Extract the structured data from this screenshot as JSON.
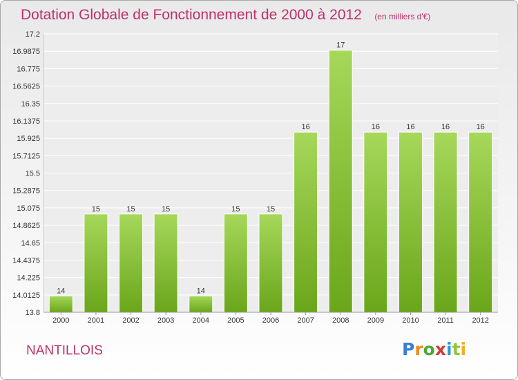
{
  "title": "Dotation Globale de Fonctionnement de 2000 à 2012",
  "unit_note": "(en milliers d'€)",
  "commune": "NANTILLOIS",
  "brand": {
    "text": "Proxiti",
    "letter_colors": [
      "#3a7fd5",
      "#f08a1c",
      "#4aa83a",
      "#d43a3a",
      "#2d9ad8",
      "#8fc63a",
      "#f0b020"
    ]
  },
  "colors": {
    "title": "#c0306a",
    "bar_light": "#a6d85a",
    "bar_dark": "#6aa61a",
    "axis_text": "#333333"
  },
  "chart_data": {
    "type": "bar",
    "title": "Dotation Globale de Fonctionnement de 2000 à 2012",
    "subtitle": "(en milliers d'€)",
    "xlabel": "",
    "ylabel": "",
    "categories": [
      "2000",
      "2001",
      "2002",
      "2003",
      "2004",
      "2005",
      "2006",
      "2007",
      "2008",
      "2009",
      "2010",
      "2011",
      "2012"
    ],
    "values": [
      14,
      15,
      15,
      15,
      14,
      15,
      15,
      16,
      17,
      16,
      16,
      16,
      16
    ],
    "value_labels": [
      "14",
      "15",
      "15",
      "15",
      "14",
      "15",
      "15",
      "16",
      "17",
      "16",
      "16",
      "16",
      "16"
    ],
    "ylim": [
      13.8,
      17.2
    ],
    "yticks": [
      "13.8",
      "14.0125",
      "14.225",
      "14.4375",
      "14.65",
      "14.8625",
      "15.075",
      "15.2875",
      "15.5",
      "15.7125",
      "15.925",
      "16.1375",
      "16.35",
      "16.5625",
      "16.775",
      "16.9875",
      "17.2"
    ],
    "grid": true,
    "legend": "none"
  }
}
